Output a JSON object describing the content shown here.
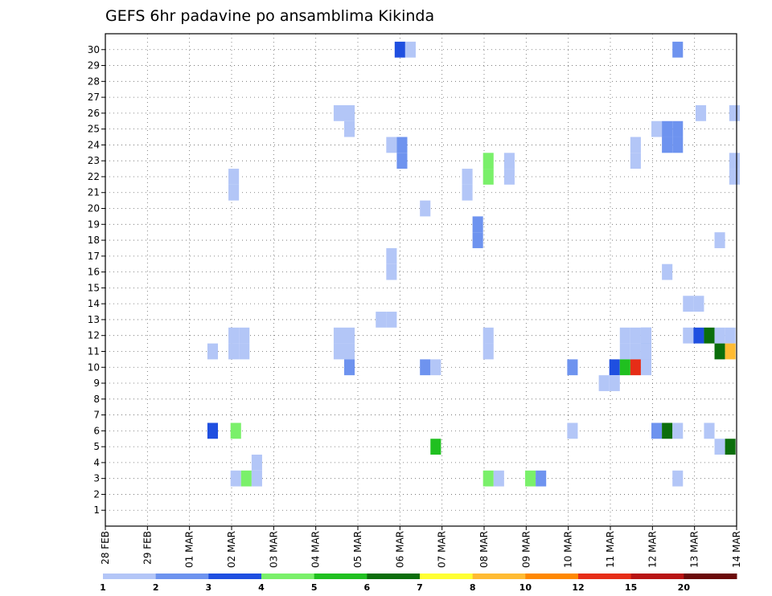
{
  "chart_data": {
    "type": "heatmap",
    "title": "GEFS 6hr padavine po ansamblima Kikinda",
    "y_ticks": [
      "1",
      "2",
      "3",
      "4",
      "5",
      "6",
      "7",
      "8",
      "9",
      "10",
      "11",
      "12",
      "13",
      "14",
      "15",
      "16",
      "17",
      "18",
      "19",
      "20",
      "21",
      "22",
      "23",
      "24",
      "25",
      "26",
      "27",
      "28",
      "29",
      "30"
    ],
    "x_ticks": [
      "28 FEB",
      "29 FEB",
      "01 MAR",
      "02 MAR",
      "03 MAR",
      "04 MAR",
      "05 MAR",
      "06 MAR",
      "07 MAR",
      "08 MAR",
      "09 MAR",
      "10 MAR",
      "11 MAR",
      "12 MAR",
      "13 MAR",
      "14 MAR"
    ],
    "ylim": [
      0,
      30
    ],
    "grid": true,
    "legend": {
      "placement": "bottom",
      "labels": [
        "1",
        "2",
        "3",
        "4",
        "5",
        "6",
        "7",
        "8",
        "10",
        "12",
        "15",
        "20"
      ],
      "colors": [
        "#b3c6f7",
        "#6e93ef",
        "#1f4fe0",
        "#7af06a",
        "#20c020",
        "#0b6e0b",
        "#ffff33",
        "#ffbb33",
        "#ff8800",
        "#e62d17",
        "#b81313",
        "#6b0a0a"
      ]
    },
    "cells_note": "each cell: member (1-30), day offset from 28 FEB (0-15, 6-hourly steps of 0.25), precipitation value (mm)",
    "cells": [
      {
        "m": 30,
        "d": 7.0,
        "v": 3.5
      },
      {
        "m": 30,
        "d": 7.25,
        "v": 1.5
      },
      {
        "m": 30,
        "d": 13.6,
        "v": 2.5
      },
      {
        "m": 26,
        "d": 5.55,
        "v": 1.5
      },
      {
        "m": 26,
        "d": 5.8,
        "v": 1.5
      },
      {
        "m": 25,
        "d": 5.8,
        "v": 1.5
      },
      {
        "m": 26,
        "d": 14.15,
        "v": 1.5
      },
      {
        "m": 26,
        "d": 14.95,
        "v": 1.5
      },
      {
        "m": 25,
        "d": 13.1,
        "v": 1.5
      },
      {
        "m": 25,
        "d": 13.35,
        "v": 2.5
      },
      {
        "m": 25,
        "d": 13.6,
        "v": 2.5
      },
      {
        "m": 24,
        "d": 13.35,
        "v": 2.5
      },
      {
        "m": 24,
        "d": 13.6,
        "v": 2.5
      },
      {
        "m": 24,
        "d": 6.8,
        "v": 1.5
      },
      {
        "m": 24,
        "d": 7.05,
        "v": 2.5
      },
      {
        "m": 23,
        "d": 7.05,
        "v": 2.5
      },
      {
        "m": 24,
        "d": 12.6,
        "v": 1.5
      },
      {
        "m": 23,
        "d": 12.6,
        "v": 1.5
      },
      {
        "m": 23,
        "d": 9.1,
        "v": 4.5
      },
      {
        "m": 22,
        "d": 9.1,
        "v": 4.5
      },
      {
        "m": 23,
        "d": 9.6,
        "v": 1.5
      },
      {
        "m": 22,
        "d": 9.6,
        "v": 1.5
      },
      {
        "m": 23,
        "d": 14.95,
        "v": 1.5
      },
      {
        "m": 22,
        "d": 14.95,
        "v": 1.5
      },
      {
        "m": 22,
        "d": 3.05,
        "v": 1.5
      },
      {
        "m": 21,
        "d": 3.05,
        "v": 1.5
      },
      {
        "m": 22,
        "d": 8.6,
        "v": 1.5
      },
      {
        "m": 21,
        "d": 8.6,
        "v": 1.5
      },
      {
        "m": 20,
        "d": 7.6,
        "v": 1.5
      },
      {
        "m": 19,
        "d": 8.85,
        "v": 2.5
      },
      {
        "m": 18,
        "d": 8.85,
        "v": 2.5
      },
      {
        "m": 18,
        "d": 14.6,
        "v": 1.5
      },
      {
        "m": 17,
        "d": 6.8,
        "v": 1.5
      },
      {
        "m": 16,
        "d": 6.8,
        "v": 1.5
      },
      {
        "m": 16,
        "d": 13.35,
        "v": 1.5
      },
      {
        "m": 14,
        "d": 13.85,
        "v": 1.5
      },
      {
        "m": 14,
        "d": 14.1,
        "v": 1.5
      },
      {
        "m": 13,
        "d": 6.55,
        "v": 1.5
      },
      {
        "m": 13,
        "d": 6.8,
        "v": 1.5
      },
      {
        "m": 12,
        "d": 12.85,
        "v": 2.5
      },
      {
        "m": 11,
        "d": 12.85,
        "v": 2.5
      },
      {
        "m": 12,
        "d": 13.85,
        "v": 1.5
      },
      {
        "m": 12,
        "d": 14.1,
        "v": 3.5
      },
      {
        "m": 12,
        "d": 14.35,
        "v": 6.5
      },
      {
        "m": 12,
        "d": 14.6,
        "v": 1.5
      },
      {
        "m": 12,
        "d": 14.85,
        "v": 1.5
      },
      {
        "m": 11,
        "d": 14.6,
        "v": 6.5
      },
      {
        "m": 11,
        "d": 14.85,
        "v": 9.0
      },
      {
        "m": 11,
        "d": 2.55,
        "v": 1.5
      },
      {
        "m": 11,
        "d": 3.05,
        "v": 1.5
      },
      {
        "m": 11,
        "d": 3.3,
        "v": 1.5
      },
      {
        "m": 12,
        "d": 3.05,
        "v": 1.5
      },
      {
        "m": 12,
        "d": 3.3,
        "v": 1.5
      },
      {
        "m": 11,
        "d": 5.55,
        "v": 1.5
      },
      {
        "m": 11,
        "d": 5.8,
        "v": 1.5
      },
      {
        "m": 12,
        "d": 5.55,
        "v": 1.5
      },
      {
        "m": 12,
        "d": 5.8,
        "v": 1.5
      },
      {
        "m": 10,
        "d": 5.8,
        "v": 2.5
      },
      {
        "m": 11,
        "d": 9.1,
        "v": 1.5
      },
      {
        "m": 12,
        "d": 9.1,
        "v": 1.5
      },
      {
        "m": 10,
        "d": 7.6,
        "v": 2.5
      },
      {
        "m": 10,
        "d": 7.85,
        "v": 1.5
      },
      {
        "m": 10,
        "d": 11.1,
        "v": 2.5
      },
      {
        "m": 11,
        "d": 12.35,
        "v": 1.5
      },
      {
        "m": 11,
        "d": 12.6,
        "v": 1.5
      },
      {
        "m": 11,
        "d": 12.85,
        "v": 1.5
      },
      {
        "m": 12,
        "d": 12.35,
        "v": 1.5
      },
      {
        "m": 12,
        "d": 12.6,
        "v": 1.5
      },
      {
        "m": 12,
        "d": 12.85,
        "v": 1.5
      },
      {
        "m": 10,
        "d": 12.1,
        "v": 3.5
      },
      {
        "m": 10,
        "d": 12.35,
        "v": 5.5
      },
      {
        "m": 10,
        "d": 12.6,
        "v": 13.0
      },
      {
        "m": 10,
        "d": 12.85,
        "v": 1.5
      },
      {
        "m": 9,
        "d": 11.85,
        "v": 1.5
      },
      {
        "m": 9,
        "d": 12.1,
        "v": 1.5
      },
      {
        "m": 6,
        "d": 2.55,
        "v": 3.5
      },
      {
        "m": 6,
        "d": 3.1,
        "v": 4.5
      },
      {
        "m": 6,
        "d": 11.1,
        "v": 1.5
      },
      {
        "m": 6,
        "d": 13.1,
        "v": 2.5
      },
      {
        "m": 6,
        "d": 13.35,
        "v": 6.5
      },
      {
        "m": 6,
        "d": 13.6,
        "v": 1.5
      },
      {
        "m": 6,
        "d": 14.35,
        "v": 1.5
      },
      {
        "m": 5,
        "d": 14.6,
        "v": 1.5
      },
      {
        "m": 5,
        "d": 14.85,
        "v": 6.5
      },
      {
        "m": 5,
        "d": 7.85,
        "v": 5.5
      },
      {
        "m": 4,
        "d": 3.6,
        "v": 1.5
      },
      {
        "m": 3,
        "d": 3.1,
        "v": 1.5
      },
      {
        "m": 3,
        "d": 3.35,
        "v": 4.5
      },
      {
        "m": 3,
        "d": 3.6,
        "v": 1.5
      },
      {
        "m": 3,
        "d": 9.1,
        "v": 4.5
      },
      {
        "m": 3,
        "d": 9.35,
        "v": 1.5
      },
      {
        "m": 3,
        "d": 10.1,
        "v": 4.5
      },
      {
        "m": 3,
        "d": 10.35,
        "v": 2.5
      },
      {
        "m": 3,
        "d": 13.6,
        "v": 1.5
      }
    ]
  }
}
